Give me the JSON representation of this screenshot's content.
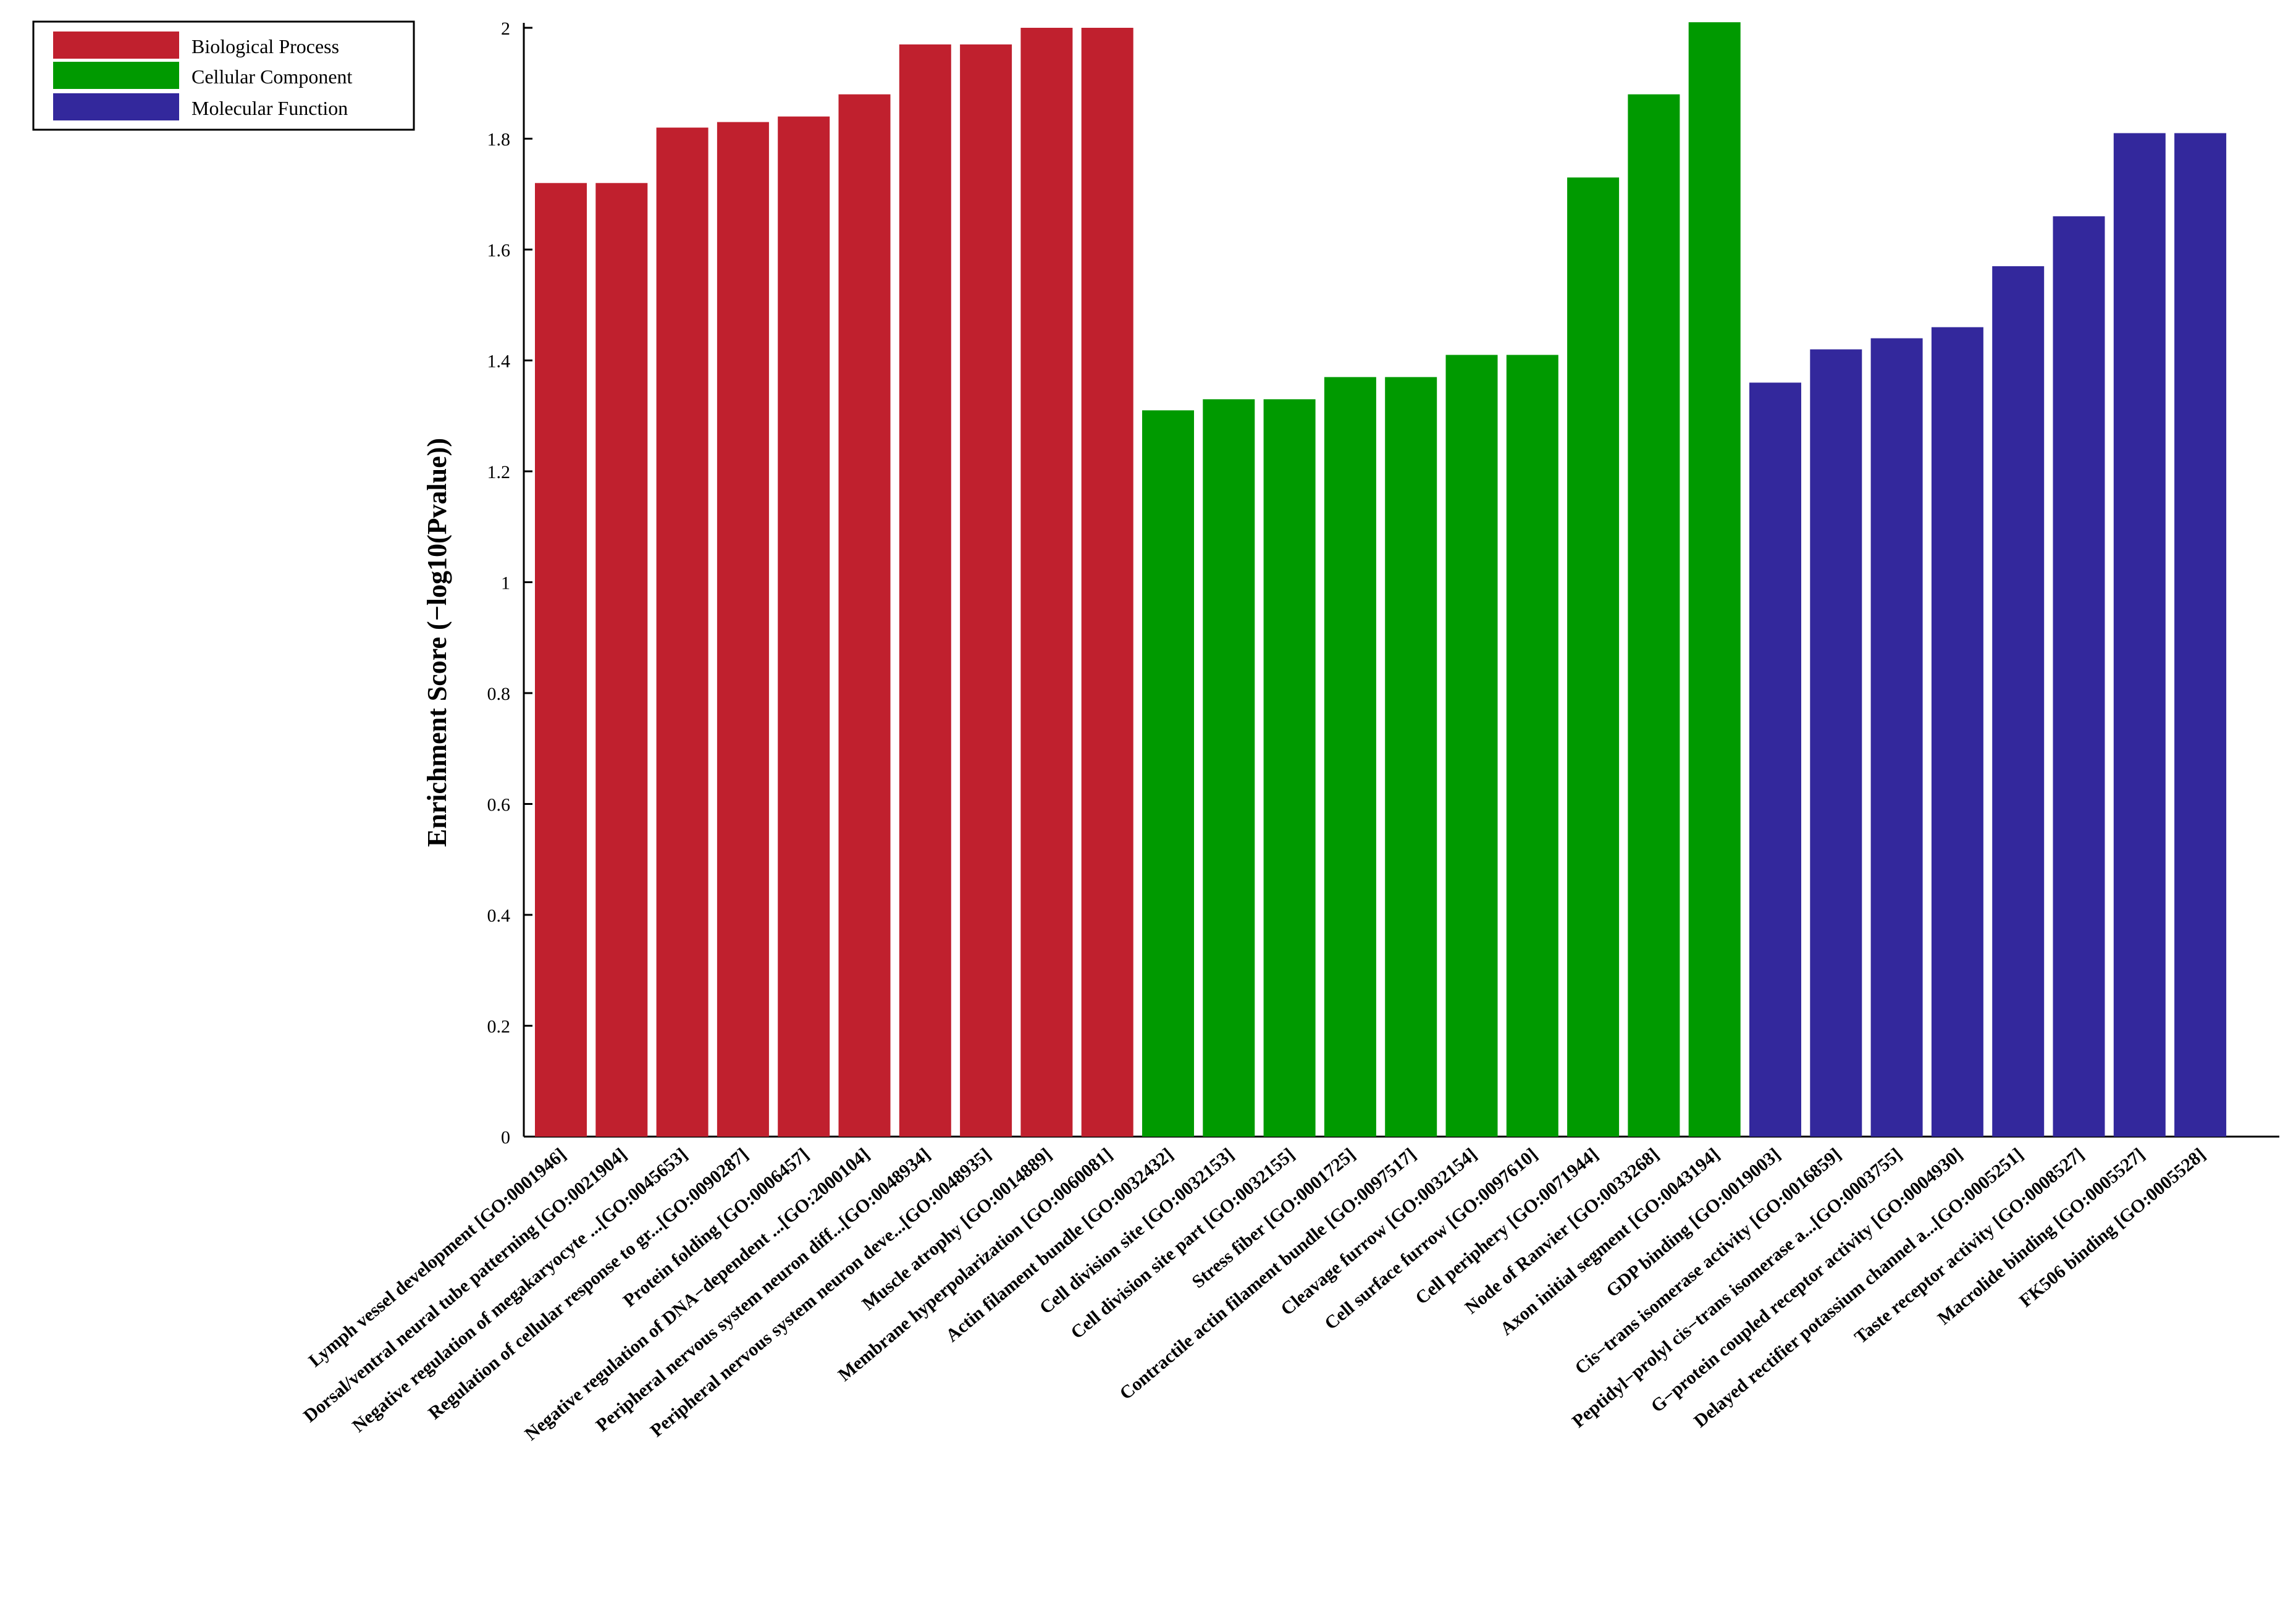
{
  "chart_data": {
    "type": "bar",
    "title": "",
    "xlabel": "",
    "ylabel": "Enrichment Score (−log10(Pvalue))",
    "ylim": [
      0,
      2
    ],
    "yticks": [
      "0",
      "0.2",
      "0.4",
      "0.6",
      "0.8",
      "1",
      "1.2",
      "1.4",
      "1.6",
      "1.8",
      "2"
    ],
    "grid": false,
    "legend_position": "top-left",
    "series": [
      {
        "name": "Biological Process",
        "color": "#c0202e"
      },
      {
        "name": "Cellular Component",
        "color": "#009a00"
      },
      {
        "name": "Molecular Function",
        "color": "#33289c"
      }
    ],
    "categories": [
      "Lymph vessel development [GO:0001946]",
      "Dorsal/ventral neural tube patterning [GO:0021904]",
      "Negative regulation of megakaryocyte ...[GO:0045653]",
      "Regulation of cellular response to gr...[GO:0090287]",
      "Protein folding [GO:0006457]",
      "Negative regulation of DNA−dependent ...[GO:2000104]",
      "Peripheral nervous system neuron diff...[GO:0048934]",
      "Peripheral nervous system neuron deve...[GO:0048935]",
      "Muscle atrophy [GO:0014889]",
      "Membrane hyperpolarization [GO:0060081]",
      "Actin filament bundle [GO:0032432]",
      "Cell division site [GO:0032153]",
      "Cell division site part [GO:0032155]",
      "Stress fiber [GO:0001725]",
      "Contractile actin filament bundle [GO:0097517]",
      "Cleavage furrow [GO:0032154]",
      "Cell surface furrow [GO:0097610]",
      "Cell periphery [GO:0071944]",
      "Node of Ranvier [GO:0033268]",
      "Axon initial segment [GO:0043194]",
      "GDP binding [GO:0019003]",
      "Cis−trans isomerase activity [GO:0016859]",
      "Peptidyl−prolyl cis−trans isomerase a...[GO:0003755]",
      "G−protein coupled receptor activity [GO:0004930]",
      "Delayed rectifier potassium channel a...[GO:0005251]",
      "Taste receptor activity [GO:0008527]",
      "Macrolide binding [GO:0005527]",
      "FK506 binding [GO:0005528]"
    ],
    "values": [
      1.72,
      1.72,
      1.82,
      1.83,
      1.84,
      1.88,
      1.97,
      1.97,
      2.0,
      2.0,
      1.31,
      1.33,
      1.33,
      1.37,
      1.37,
      1.41,
      1.41,
      1.73,
      1.88,
      2.01,
      1.36,
      1.42,
      1.44,
      1.46,
      1.57,
      1.66,
      1.81,
      1.81
    ],
    "groups": [
      0,
      0,
      0,
      0,
      0,
      0,
      0,
      0,
      0,
      0,
      1,
      1,
      1,
      1,
      1,
      1,
      1,
      1,
      1,
      1,
      2,
      2,
      2,
      2,
      2,
      2,
      2,
      2
    ]
  }
}
